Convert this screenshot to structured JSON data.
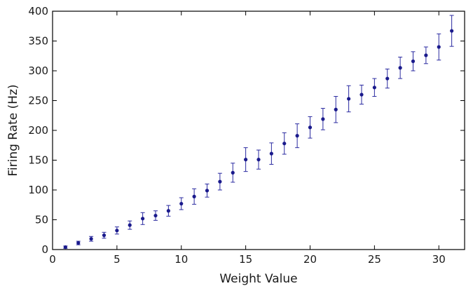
{
  "chart_data": {
    "type": "scatter",
    "title": "",
    "xlabel": "Weight Value",
    "ylabel": "Firing Rate (Hz)",
    "xlim": [
      0,
      32
    ],
    "ylim": [
      0,
      400
    ],
    "x_ticks": [
      0,
      5,
      10,
      15,
      20,
      25,
      30
    ],
    "y_ticks": [
      0,
      50,
      100,
      150,
      200,
      250,
      300,
      350,
      400
    ],
    "grid": false,
    "legend": "none",
    "colors": {
      "marker": "#1a1a8c",
      "errorbar": "#2a2aa0",
      "axis": "#000000"
    },
    "series": [
      {
        "x": [
          1,
          2,
          3,
          4,
          5,
          6,
          7,
          8,
          9,
          10,
          11,
          12,
          13,
          14,
          15,
          16,
          17,
          18,
          19,
          20,
          21,
          22,
          23,
          24,
          25,
          26,
          27,
          28,
          29,
          30,
          31
        ],
        "y": [
          4,
          11,
          18,
          24,
          32,
          41,
          52,
          57,
          65,
          77,
          89,
          99,
          114,
          129,
          151,
          151,
          161,
          178,
          191,
          205,
          219,
          235,
          253,
          260,
          272,
          287,
          305,
          316,
          326,
          340,
          367
        ],
        "error": [
          2,
          3,
          4,
          5,
          6,
          7,
          10,
          8,
          9,
          10,
          13,
          11,
          14,
          16,
          20,
          16,
          18,
          18,
          20,
          18,
          18,
          22,
          22,
          16,
          15,
          16,
          18,
          16,
          14,
          22,
          26
        ]
      }
    ]
  }
}
